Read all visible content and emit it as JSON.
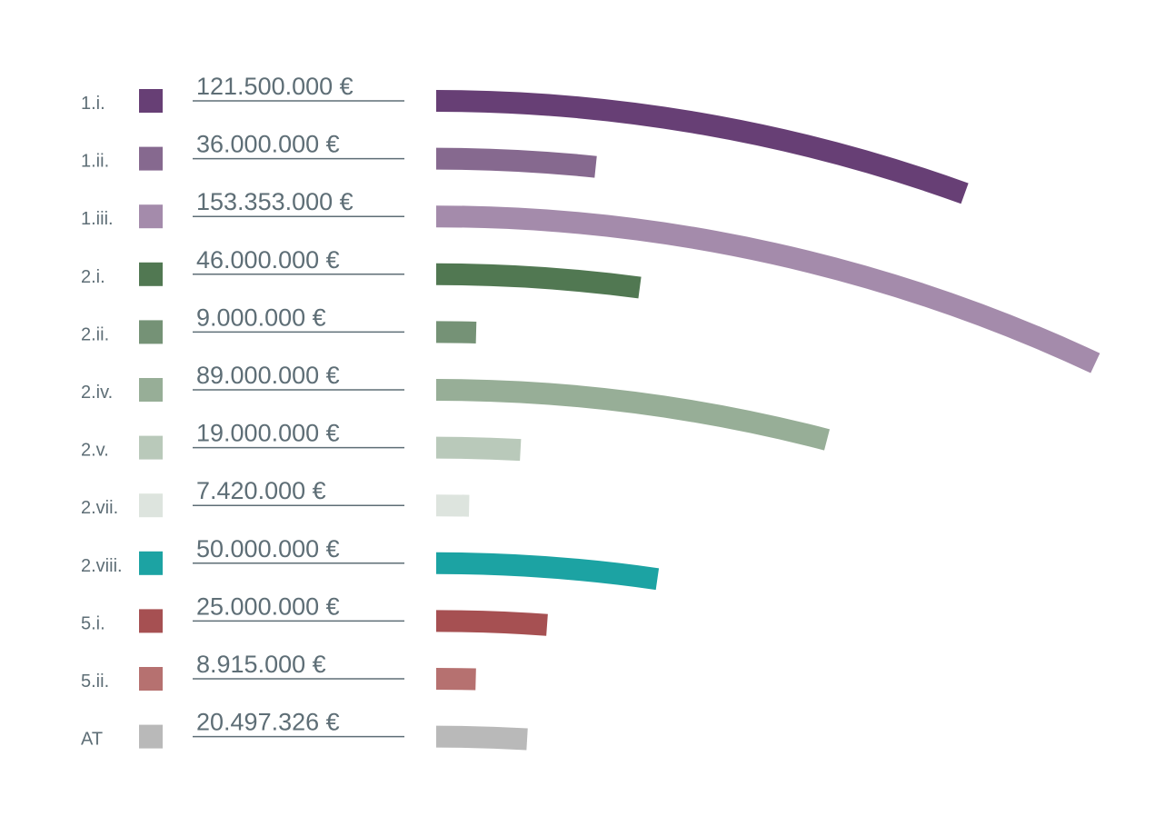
{
  "chart_data": {
    "type": "bar",
    "categories": [
      "1.i.",
      "1.ii.",
      "1.iii.",
      "2.i.",
      "2.ii.",
      "2.iv.",
      "2.v.",
      "2.vii.",
      "2.viii.",
      "5.i.",
      "5.ii.",
      "AT"
    ],
    "values": [
      121500000,
      36000000,
      153353000,
      46000000,
      9000000,
      89000000,
      19000000,
      7420000,
      50000000,
      25000000,
      8915000,
      20497326
    ],
    "value_labels": [
      "121.500.000 €",
      "36.000.000 €",
      "153.353.000 €",
      "46.000.000 €",
      "9.000.000 €",
      "89.000.000 €",
      "19.000.000 €",
      "7.420.000 €",
      "50.000.000 €",
      "25.000.000 €",
      "8.915.000 €",
      "20.497.326 €"
    ],
    "colors": [
      "#673f75",
      "#86698f",
      "#a48bab",
      "#517852",
      "#759276",
      "#97ae97",
      "#b9c9ba",
      "#dde4de",
      "#1ca3a3",
      "#a65052",
      "#b67170",
      "#b9b9b9"
    ]
  }
}
